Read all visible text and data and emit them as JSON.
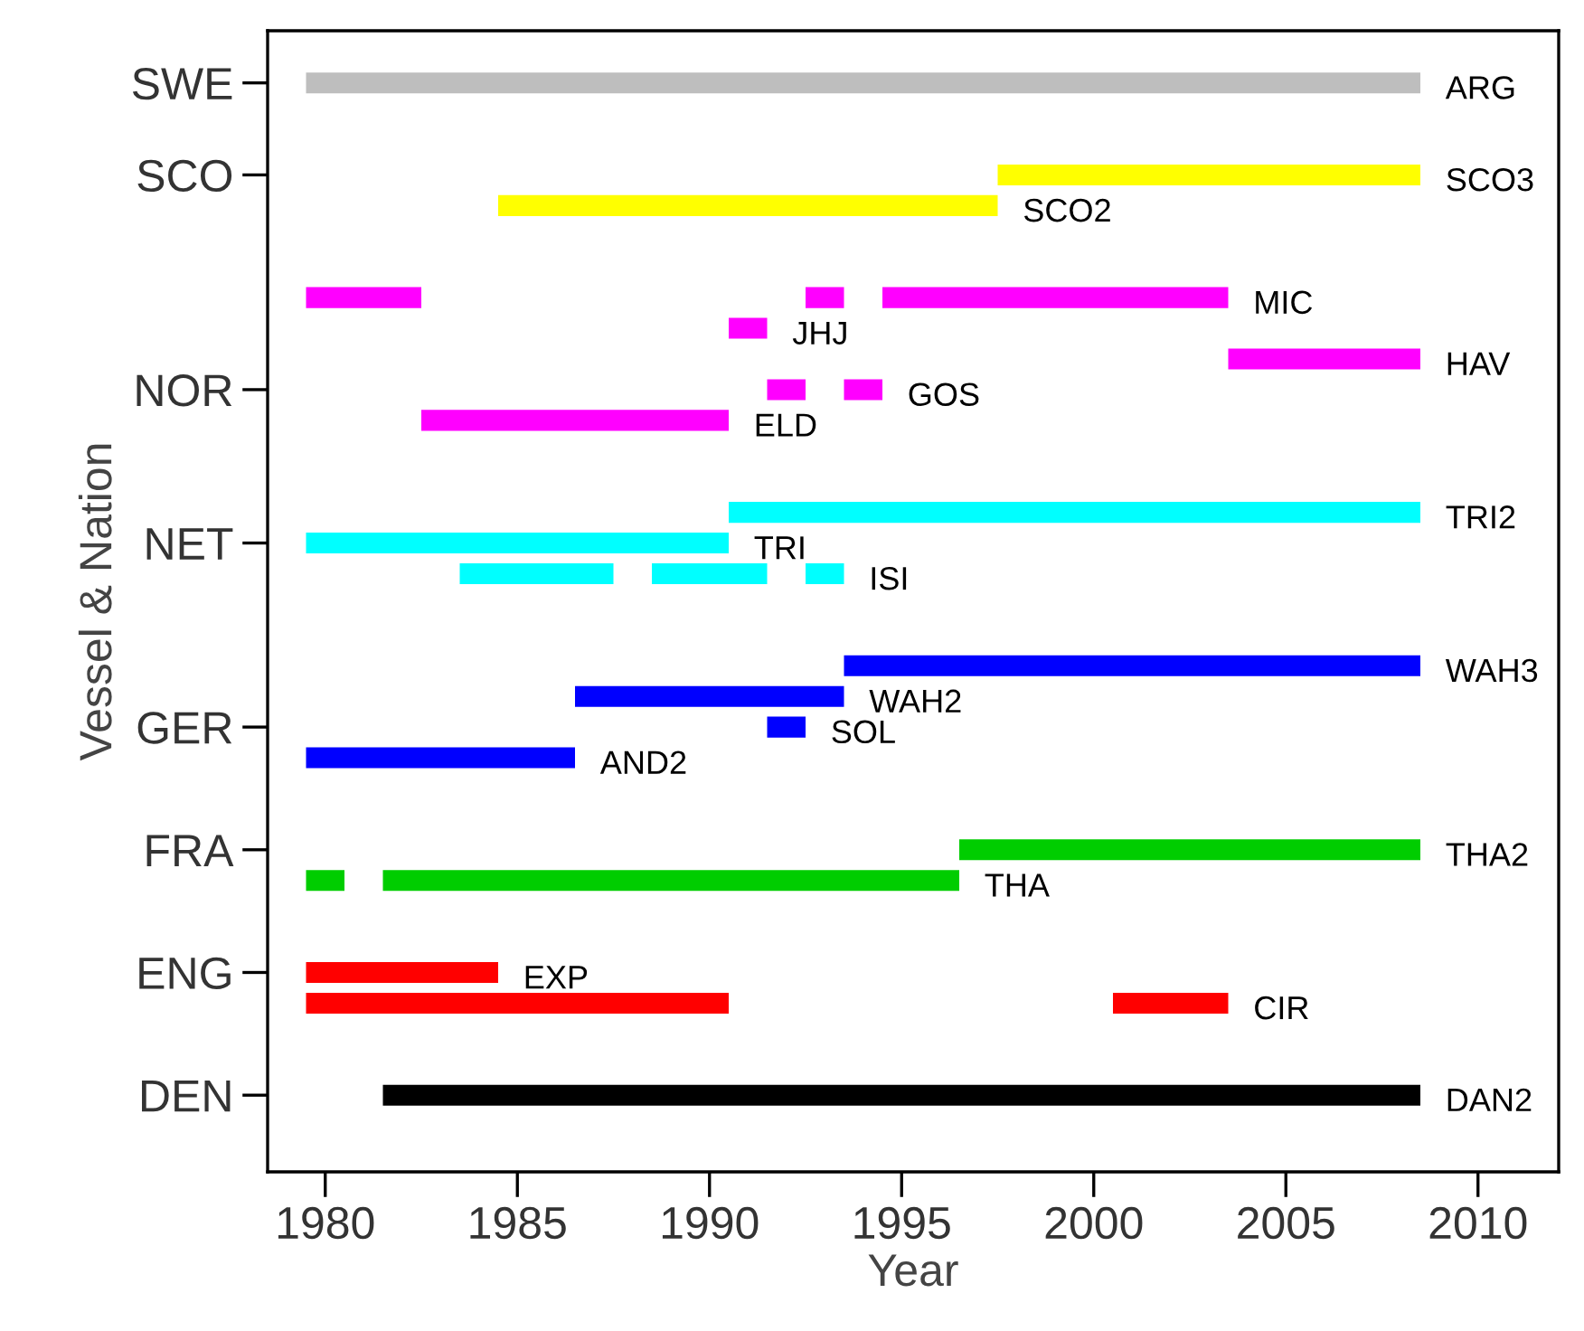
{
  "chart_data": {
    "type": "bar",
    "orientation": "horizontal",
    "xlabel": "Year",
    "ylabel": "Vessel & Nation",
    "xlim": [
      1978.5,
      2012.1
    ],
    "xticks": [
      1980,
      1985,
      1990,
      1995,
      2000,
      2005,
      2010
    ],
    "grid": false,
    "categories": [
      "SWE",
      null,
      null,
      "SCO",
      null,
      null,
      null,
      null,
      null,
      null,
      "NOR",
      null,
      null,
      null,
      null,
      "NET",
      null,
      null,
      null,
      null,
      null,
      "GER",
      null,
      null,
      null,
      "FRA",
      null,
      null,
      null,
      "ENG",
      null,
      null,
      null,
      "DEN"
    ],
    "series": [
      {
        "name": "ARG",
        "color": "#bebebe",
        "values": [
          29,
          null,
          null,
          null,
          null,
          null,
          null,
          null,
          null,
          null,
          null,
          null,
          null,
          null,
          null,
          null,
          null,
          null,
          null,
          null,
          null,
          null,
          null,
          null,
          null,
          null,
          null,
          null,
          null,
          null,
          null,
          null,
          null,
          null
        ],
        "base": [
          1979.5,
          null,
          null,
          null,
          null,
          null,
          null,
          null,
          null,
          null,
          null,
          null,
          null,
          null,
          null,
          null,
          null,
          null,
          null,
          null,
          null,
          null,
          null,
          null,
          null,
          null,
          null,
          null,
          null,
          null,
          null,
          null,
          null,
          null
        ]
      },
      {
        "name": "SCO3",
        "color": "#ffff00",
        "values": [
          null,
          null,
          null,
          11,
          null,
          null,
          null,
          null,
          null,
          null,
          null,
          null,
          null,
          null,
          null,
          null,
          null,
          null,
          null,
          null,
          null,
          null,
          null,
          null,
          null,
          null,
          null,
          null,
          null,
          null,
          null,
          null,
          null,
          null
        ],
        "base": [
          null,
          null,
          null,
          1997.5,
          null,
          null,
          null,
          null,
          null,
          null,
          null,
          null,
          null,
          null,
          null,
          null,
          null,
          null,
          null,
          null,
          null,
          null,
          null,
          null,
          null,
          null,
          null,
          null,
          null,
          null,
          null,
          null,
          null,
          null
        ]
      },
      {
        "name": "SCO2",
        "color": "#ffff00",
        "values": [
          null,
          null,
          null,
          null,
          13,
          null,
          null,
          null,
          null,
          null,
          null,
          null,
          null,
          null,
          null,
          null,
          null,
          null,
          null,
          null,
          null,
          null,
          null,
          null,
          null,
          null,
          null,
          null,
          null,
          null,
          null,
          null,
          null,
          null
        ],
        "base": [
          null,
          null,
          null,
          null,
          1984.5,
          null,
          null,
          null,
          null,
          null,
          null,
          null,
          null,
          null,
          null,
          null,
          null,
          null,
          null,
          null,
          null,
          null,
          null,
          null,
          null,
          null,
          null,
          null,
          null,
          null,
          null,
          null,
          null,
          null
        ]
      },
      {
        "colors": [
          null,
          null,
          null,
          null,
          null,
          null,
          null,
          "#ff00ff",
          null,
          null,
          "#ff00ff",
          null,
          null,
          null,
          null,
          null,
          "#00ffff",
          null,
          null,
          null,
          null,
          null,
          null,
          null,
          null,
          null,
          "#00cd00",
          null,
          null,
          null,
          "#ff0000",
          null,
          null,
          null
        ],
        "values": [
          null,
          null,
          null,
          null,
          null,
          null,
          null,
          3,
          null,
          null,
          1,
          null,
          null,
          null,
          null,
          null,
          4,
          null,
          null,
          null,
          null,
          null,
          null,
          null,
          null,
          null,
          1,
          null,
          null,
          null,
          11,
          null,
          null,
          null
        ],
        "base": [
          null,
          null,
          null,
          null,
          null,
          null,
          null,
          1979.5,
          null,
          null,
          1991.5,
          null,
          null,
          null,
          null,
          null,
          1983.5,
          null,
          null,
          null,
          null,
          null,
          null,
          null,
          null,
          null,
          1979.5,
          null,
          null,
          null,
          1979.5,
          null,
          null,
          null
        ]
      },
      {
        "colors": [
          null,
          null,
          null,
          null,
          null,
          null,
          null,
          "#ff00ff",
          null,
          null,
          null,
          null,
          null,
          null,
          null,
          null,
          "#00ffff",
          null,
          null,
          null,
          null,
          null,
          null,
          null,
          null,
          null,
          null,
          null,
          null,
          null,
          null,
          null,
          null,
          null
        ],
        "values": [
          null,
          null,
          null,
          null,
          null,
          null,
          null,
          1,
          null,
          null,
          null,
          null,
          null,
          null,
          null,
          null,
          3,
          null,
          null,
          null,
          null,
          null,
          null,
          null,
          null,
          null,
          null,
          null,
          null,
          null,
          null,
          null,
          null,
          null
        ],
        "base": [
          null,
          null,
          null,
          null,
          null,
          null,
          null,
          1992.5,
          null,
          null,
          null,
          null,
          null,
          null,
          null,
          null,
          1988.5,
          null,
          null,
          null,
          null,
          null,
          null,
          null,
          null,
          null,
          null,
          null,
          null,
          null,
          null,
          null,
          null,
          null
        ]
      },
      {
        "name": "MIC",
        "color": "#ff00ff",
        "values": [
          null,
          null,
          null,
          null,
          null,
          null,
          null,
          9,
          null,
          null,
          null,
          null,
          null,
          null,
          null,
          null,
          null,
          null,
          null,
          null,
          null,
          null,
          null,
          null,
          null,
          null,
          null,
          null,
          null,
          null,
          null,
          null,
          null,
          null
        ],
        "base": [
          null,
          null,
          null,
          null,
          null,
          null,
          null,
          1994.5,
          null,
          null,
          null,
          null,
          null,
          null,
          null,
          null,
          null,
          null,
          null,
          null,
          null,
          null,
          null,
          null,
          null,
          null,
          null,
          null,
          null,
          null,
          null,
          null,
          null,
          null
        ]
      },
      {
        "name": "JHJ",
        "color": "#ff00ff",
        "values": [
          null,
          null,
          null,
          null,
          null,
          null,
          null,
          null,
          1,
          null,
          null,
          null,
          null,
          null,
          null,
          null,
          null,
          null,
          null,
          null,
          null,
          null,
          null,
          null,
          null,
          null,
          null,
          null,
          null,
          null,
          null,
          null,
          null,
          null
        ],
        "base": [
          null,
          null,
          null,
          null,
          null,
          null,
          null,
          null,
          1990.5,
          null,
          null,
          null,
          null,
          null,
          null,
          null,
          null,
          null,
          null,
          null,
          null,
          null,
          null,
          null,
          null,
          null,
          null,
          null,
          null,
          null,
          null,
          null,
          null,
          null
        ]
      },
      {
        "name": "HAV",
        "color": "#ff00ff",
        "values": [
          null,
          null,
          null,
          null,
          null,
          null,
          null,
          null,
          null,
          5,
          null,
          null,
          null,
          null,
          null,
          null,
          null,
          null,
          null,
          null,
          null,
          null,
          null,
          null,
          null,
          null,
          null,
          null,
          null,
          null,
          null,
          null,
          null,
          null
        ],
        "base": [
          null,
          null,
          null,
          null,
          null,
          null,
          null,
          null,
          null,
          2003.5,
          null,
          null,
          null,
          null,
          null,
          null,
          null,
          null,
          null,
          null,
          null,
          null,
          null,
          null,
          null,
          null,
          null,
          null,
          null,
          null,
          null,
          null,
          null,
          null
        ]
      },
      {
        "name": "GOS",
        "color": "#ff00ff",
        "values": [
          null,
          null,
          null,
          null,
          null,
          null,
          null,
          null,
          null,
          null,
          1,
          null,
          null,
          null,
          null,
          null,
          null,
          null,
          null,
          null,
          null,
          null,
          null,
          null,
          null,
          null,
          null,
          null,
          null,
          null,
          null,
          null,
          null,
          null
        ],
        "base": [
          null,
          null,
          null,
          null,
          null,
          null,
          null,
          null,
          null,
          null,
          1993.5,
          null,
          null,
          null,
          null,
          null,
          null,
          null,
          null,
          null,
          null,
          null,
          null,
          null,
          null,
          null,
          null,
          null,
          null,
          null,
          null,
          null,
          null,
          null
        ]
      },
      {
        "name": "ELD",
        "color": "#ff00ff",
        "values": [
          null,
          null,
          null,
          null,
          null,
          null,
          null,
          null,
          null,
          null,
          null,
          8,
          null,
          null,
          null,
          null,
          null,
          null,
          null,
          null,
          null,
          null,
          null,
          null,
          null,
          null,
          null,
          null,
          null,
          null,
          null,
          null,
          null,
          null
        ],
        "base": [
          null,
          null,
          null,
          null,
          null,
          null,
          null,
          null,
          null,
          null,
          null,
          1982.5,
          null,
          null,
          null,
          null,
          null,
          null,
          null,
          null,
          null,
          null,
          null,
          null,
          null,
          null,
          null,
          null,
          null,
          null,
          null,
          null,
          null,
          null
        ]
      },
      {
        "name": "TRI2",
        "color": "#00ffff",
        "values": [
          null,
          null,
          null,
          null,
          null,
          null,
          null,
          null,
          null,
          null,
          null,
          null,
          null,
          null,
          18,
          null,
          null,
          null,
          null,
          null,
          null,
          null,
          null,
          null,
          null,
          null,
          null,
          null,
          null,
          null,
          null,
          null,
          null,
          null
        ],
        "base": [
          null,
          null,
          null,
          null,
          null,
          null,
          null,
          null,
          null,
          null,
          null,
          null,
          null,
          null,
          1990.5,
          null,
          null,
          null,
          null,
          null,
          null,
          null,
          null,
          null,
          null,
          null,
          null,
          null,
          null,
          null,
          null,
          null,
          null,
          null
        ]
      },
      {
        "name": "TRI",
        "color": "#00ffff",
        "values": [
          null,
          null,
          null,
          null,
          null,
          null,
          null,
          null,
          null,
          null,
          null,
          null,
          null,
          null,
          null,
          11,
          null,
          null,
          null,
          null,
          null,
          null,
          null,
          null,
          null,
          null,
          null,
          null,
          null,
          null,
          null,
          null,
          null,
          null
        ],
        "base": [
          null,
          null,
          null,
          null,
          null,
          null,
          null,
          null,
          null,
          null,
          null,
          null,
          null,
          null,
          null,
          1979.5,
          null,
          null,
          null,
          null,
          null,
          null,
          null,
          null,
          null,
          null,
          null,
          null,
          null,
          null,
          null,
          null,
          null,
          null
        ]
      },
      {
        "name": "ISI",
        "color": "#00ffff",
        "values": [
          null,
          null,
          null,
          null,
          null,
          null,
          null,
          null,
          null,
          null,
          null,
          null,
          null,
          null,
          null,
          null,
          1,
          null,
          null,
          null,
          null,
          null,
          null,
          null,
          null,
          null,
          null,
          null,
          null,
          null,
          null,
          null,
          null,
          null
        ],
        "base": [
          null,
          null,
          null,
          null,
          null,
          null,
          null,
          null,
          null,
          null,
          null,
          null,
          null,
          null,
          null,
          null,
          1992.5,
          null,
          null,
          null,
          null,
          null,
          null,
          null,
          null,
          null,
          null,
          null,
          null,
          null,
          null,
          null,
          null,
          null
        ]
      },
      {
        "name": "WAH3",
        "color": "#0000ff",
        "values": [
          null,
          null,
          null,
          null,
          null,
          null,
          null,
          null,
          null,
          null,
          null,
          null,
          null,
          null,
          null,
          null,
          null,
          null,
          null,
          15,
          null,
          null,
          null,
          null,
          null,
          null,
          null,
          null,
          null,
          null,
          null,
          null,
          null,
          null
        ],
        "base": [
          null,
          null,
          null,
          null,
          null,
          null,
          null,
          null,
          null,
          null,
          null,
          null,
          null,
          null,
          null,
          null,
          null,
          null,
          null,
          1993.5,
          null,
          null,
          null,
          null,
          null,
          null,
          null,
          null,
          null,
          null,
          null,
          null,
          null,
          null
        ]
      },
      {
        "name": "WAH2",
        "color": "#0000ff",
        "values": [
          null,
          null,
          null,
          null,
          null,
          null,
          null,
          null,
          null,
          null,
          null,
          null,
          null,
          null,
          null,
          null,
          null,
          null,
          null,
          null,
          7,
          null,
          null,
          null,
          null,
          null,
          null,
          null,
          null,
          null,
          null,
          null,
          null,
          null
        ],
        "base": [
          null,
          null,
          null,
          null,
          null,
          null,
          null,
          null,
          null,
          null,
          null,
          null,
          null,
          null,
          null,
          null,
          null,
          null,
          null,
          null,
          1986.5,
          null,
          null,
          null,
          null,
          null,
          null,
          null,
          null,
          null,
          null,
          null,
          null,
          null
        ]
      },
      {
        "name": "SOL",
        "color": "#0000ff",
        "values": [
          null,
          null,
          null,
          null,
          null,
          null,
          null,
          null,
          null,
          null,
          null,
          null,
          null,
          null,
          null,
          null,
          null,
          null,
          null,
          null,
          null,
          1,
          null,
          null,
          null,
          null,
          null,
          null,
          null,
          null,
          null,
          null,
          null,
          null
        ],
        "base": [
          null,
          null,
          null,
          null,
          null,
          null,
          null,
          null,
          null,
          null,
          null,
          null,
          null,
          null,
          null,
          null,
          null,
          null,
          null,
          null,
          null,
          1991.5,
          null,
          null,
          null,
          null,
          null,
          null,
          null,
          null,
          null,
          null,
          null,
          null
        ]
      },
      {
        "name": "AND2",
        "color": "#0000ff",
        "values": [
          null,
          null,
          null,
          null,
          null,
          null,
          null,
          null,
          null,
          null,
          null,
          null,
          null,
          null,
          null,
          null,
          null,
          null,
          null,
          null,
          null,
          null,
          7,
          null,
          null,
          null,
          null,
          null,
          null,
          null,
          null,
          null,
          null,
          null
        ],
        "base": [
          null,
          null,
          null,
          null,
          null,
          null,
          null,
          null,
          null,
          null,
          null,
          null,
          null,
          null,
          null,
          null,
          null,
          null,
          null,
          null,
          null,
          null,
          1979.5,
          null,
          null,
          null,
          null,
          null,
          null,
          null,
          null,
          null,
          null,
          null
        ]
      },
      {
        "name": "THA2",
        "color": "#00cd00",
        "values": [
          null,
          null,
          null,
          null,
          null,
          null,
          null,
          null,
          null,
          null,
          null,
          null,
          null,
          null,
          null,
          null,
          null,
          null,
          null,
          null,
          null,
          null,
          null,
          null,
          null,
          12,
          null,
          null,
          null,
          null,
          null,
          null,
          null,
          null
        ],
        "base": [
          null,
          null,
          null,
          null,
          null,
          null,
          null,
          null,
          null,
          null,
          null,
          null,
          null,
          null,
          null,
          null,
          null,
          null,
          null,
          null,
          null,
          null,
          null,
          null,
          null,
          1996.5,
          null,
          null,
          null,
          null,
          null,
          null,
          null,
          null
        ]
      },
      {
        "name": "THA",
        "color": "#00cd00",
        "values": [
          null,
          null,
          null,
          null,
          null,
          null,
          null,
          null,
          null,
          null,
          null,
          null,
          null,
          null,
          null,
          null,
          null,
          null,
          null,
          null,
          null,
          null,
          null,
          null,
          null,
          null,
          15,
          null,
          null,
          null,
          null,
          null,
          null,
          null
        ],
        "base": [
          null,
          null,
          null,
          null,
          null,
          null,
          null,
          null,
          null,
          null,
          null,
          null,
          null,
          null,
          null,
          null,
          null,
          null,
          null,
          null,
          null,
          null,
          null,
          null,
          null,
          null,
          1981.5,
          null,
          null,
          null,
          null,
          null,
          null,
          null
        ]
      },
      {
        "name": "EXP",
        "color": "#ff0000",
        "values": [
          null,
          null,
          null,
          null,
          null,
          null,
          null,
          null,
          null,
          null,
          null,
          null,
          null,
          null,
          null,
          null,
          null,
          null,
          null,
          null,
          null,
          null,
          null,
          null,
          null,
          null,
          null,
          null,
          null,
          5,
          null,
          null,
          null,
          null
        ],
        "base": [
          null,
          null,
          null,
          null,
          null,
          null,
          null,
          null,
          null,
          null,
          null,
          null,
          null,
          null,
          null,
          null,
          null,
          null,
          null,
          null,
          null,
          null,
          null,
          null,
          null,
          null,
          null,
          null,
          null,
          1979.5,
          null,
          null,
          null,
          null
        ]
      },
      {
        "name": "CIR",
        "color": "#ff0000",
        "values": [
          null,
          null,
          null,
          null,
          null,
          null,
          null,
          null,
          null,
          null,
          null,
          null,
          null,
          null,
          null,
          null,
          null,
          null,
          null,
          null,
          null,
          null,
          null,
          null,
          null,
          null,
          null,
          null,
          null,
          null,
          3,
          null,
          null,
          null
        ],
        "base": [
          null,
          null,
          null,
          null,
          null,
          null,
          null,
          null,
          null,
          null,
          null,
          null,
          null,
          null,
          null,
          null,
          null,
          null,
          null,
          null,
          null,
          null,
          null,
          null,
          null,
          null,
          null,
          null,
          null,
          null,
          2000.5,
          null,
          null,
          null
        ]
      },
      {
        "name": "DAN2",
        "color": "#000000",
        "values": [
          null,
          null,
          null,
          null,
          null,
          null,
          null,
          null,
          null,
          null,
          null,
          null,
          null,
          null,
          null,
          null,
          null,
          null,
          null,
          null,
          null,
          null,
          null,
          null,
          null,
          null,
          null,
          null,
          null,
          null,
          null,
          null,
          null,
          27
        ],
        "base": [
          null,
          null,
          null,
          null,
          null,
          null,
          null,
          null,
          null,
          null,
          null,
          null,
          null,
          null,
          null,
          null,
          null,
          null,
          null,
          null,
          null,
          null,
          null,
          null,
          null,
          null,
          null,
          null,
          null,
          null,
          null,
          null,
          null,
          1981.5
        ]
      }
    ]
  }
}
